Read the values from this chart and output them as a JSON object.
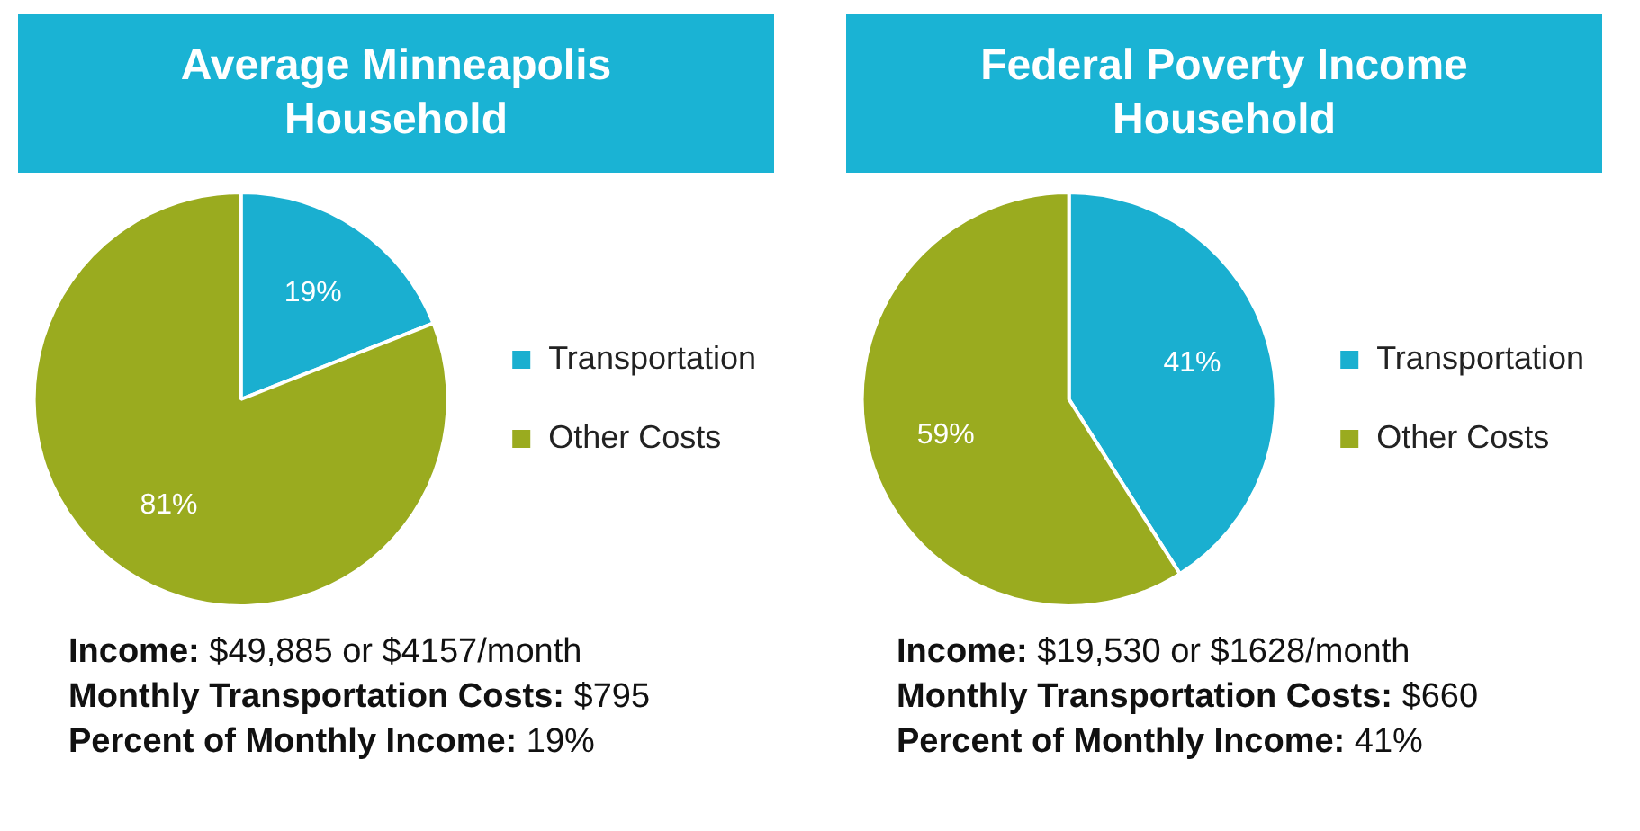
{
  "chart_data": [
    {
      "type": "pie",
      "title": "Average Minneapolis Household",
      "categories": [
        "Transportation",
        "Other Costs"
      ],
      "values": [
        19,
        81
      ],
      "colors": [
        "#1aafd0",
        "#9aab1f"
      ],
      "value_labels": [
        "19%",
        "81%"
      ],
      "legend": "right",
      "annotations": [
        "Income: $49,885 or $4157/month",
        "Monthly Transportation Costs: $795",
        "Percent of Monthly Income: 19%"
      ]
    },
    {
      "type": "pie",
      "title": "Federal Poverty Income Household",
      "categories": [
        "Transportation",
        "Other Costs"
      ],
      "values": [
        41,
        59
      ],
      "colors": [
        "#1aafd0",
        "#9aab1f"
      ],
      "value_labels": [
        "41%",
        "59%"
      ],
      "legend": "right",
      "annotations": [
        "Income: $19,530 or $1628/month",
        "Monthly Transportation Costs: $660",
        "Percent of Monthly Income: 41%"
      ]
    }
  ]
}
